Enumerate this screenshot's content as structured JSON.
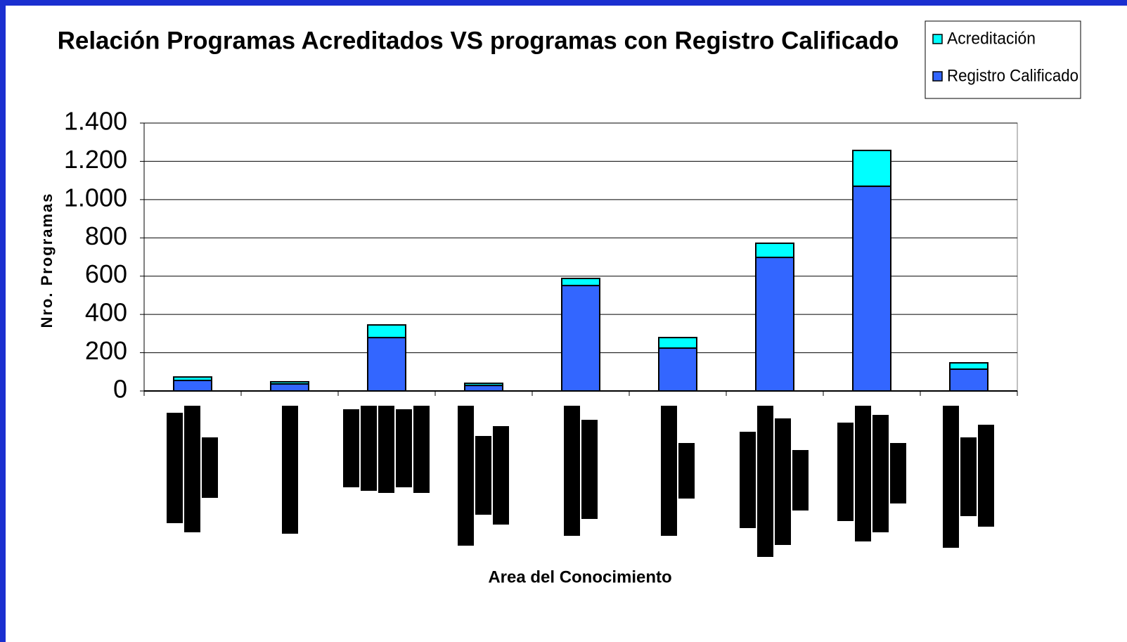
{
  "chart_data": {
    "type": "stacked_bar",
    "title": "Relación Programas Acreditados VS programas con Registro Calificado",
    "xlabel": "Area del Conocimiento",
    "ylabel": "Nro. Programas",
    "categories": [
      null,
      null,
      null,
      null,
      null,
      null,
      null,
      null,
      null
    ],
    "series": [
      {
        "name": "Registro Calificado",
        "color": "#3366ff",
        "values": [
          55,
          37,
          279,
          29,
          551,
          224,
          698,
          1070,
          114
        ]
      },
      {
        "name": "Acreditación",
        "color": "#00ffff",
        "values": [
          18,
          11,
          66,
          11,
          37,
          55,
          74,
          187,
          33
        ]
      }
    ],
    "ylim": [
      0,
      1400
    ],
    "yticks": [
      0,
      200,
      400,
      600,
      800,
      {
        "value": 1000,
        "label": "1.000"
      },
      {
        "value": 1200,
        "label": "1.200"
      },
      {
        "value": 1400,
        "label": "1.400"
      }
    ],
    "grid": true,
    "legend": "upper right"
  }
}
